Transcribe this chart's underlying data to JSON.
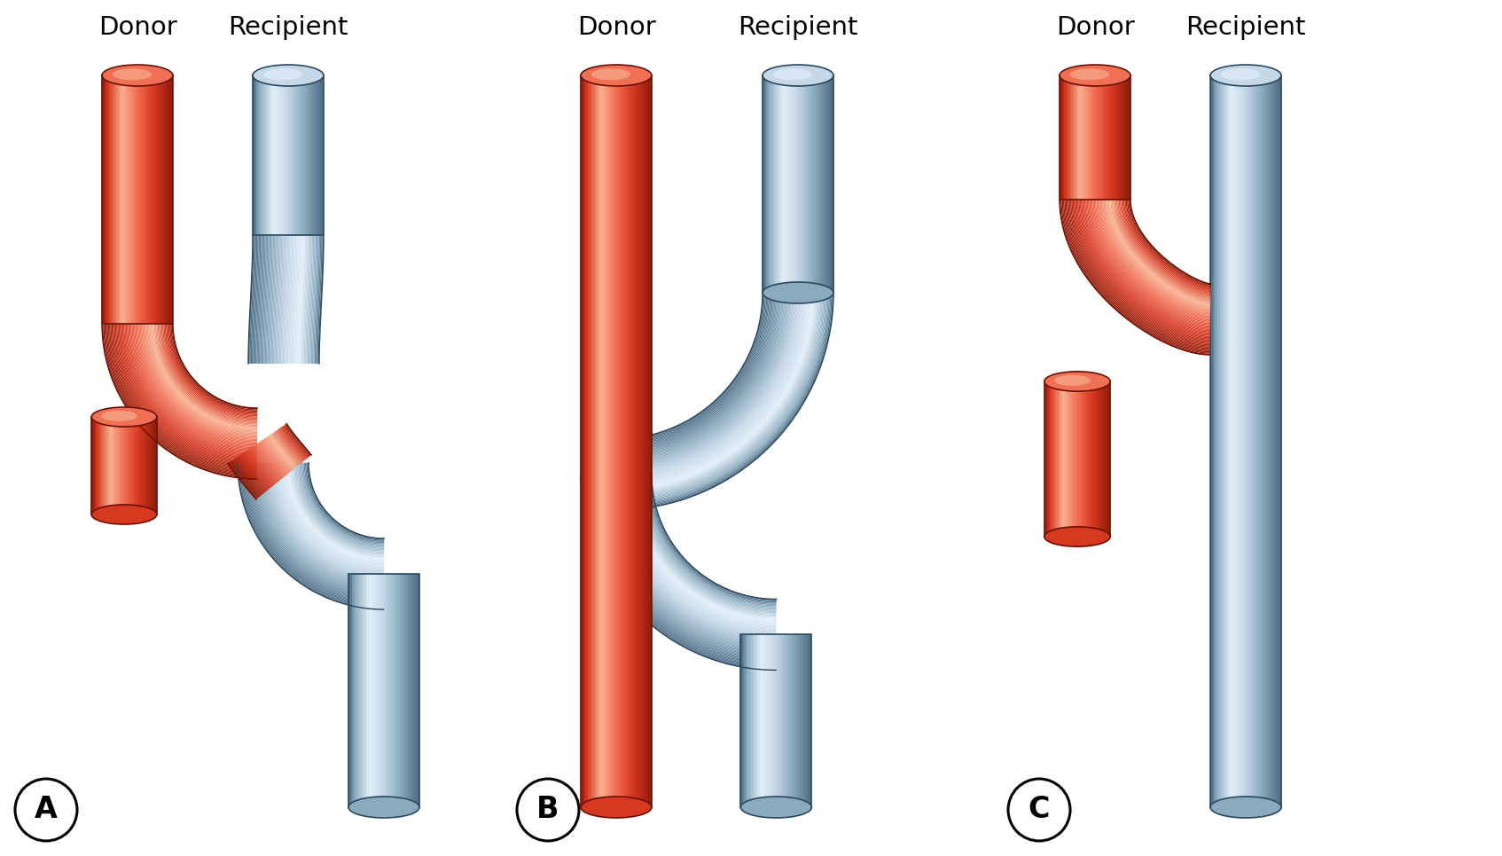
{
  "donor_color_main": "#D63820",
  "donor_color_light": "#F07055",
  "donor_color_dark": "#8B1A08",
  "donor_color_highlight": "#F8B090",
  "donor_color_vdark": "#6B1005",
  "recipient_color_main": "#8AAABE",
  "recipient_color_light": "#C5D8E8",
  "recipient_color_dark": "#4A6880",
  "recipient_color_highlight": "#E2EEF8",
  "recipient_color_vdark": "#2A4860",
  "bg_color": "#FFFFFF",
  "label_A": "A",
  "label_B": "B",
  "label_C": "C",
  "donor_text": "Donor",
  "recipient_text": "Recipient",
  "font_size_abc": 24,
  "font_size_header": 21
}
